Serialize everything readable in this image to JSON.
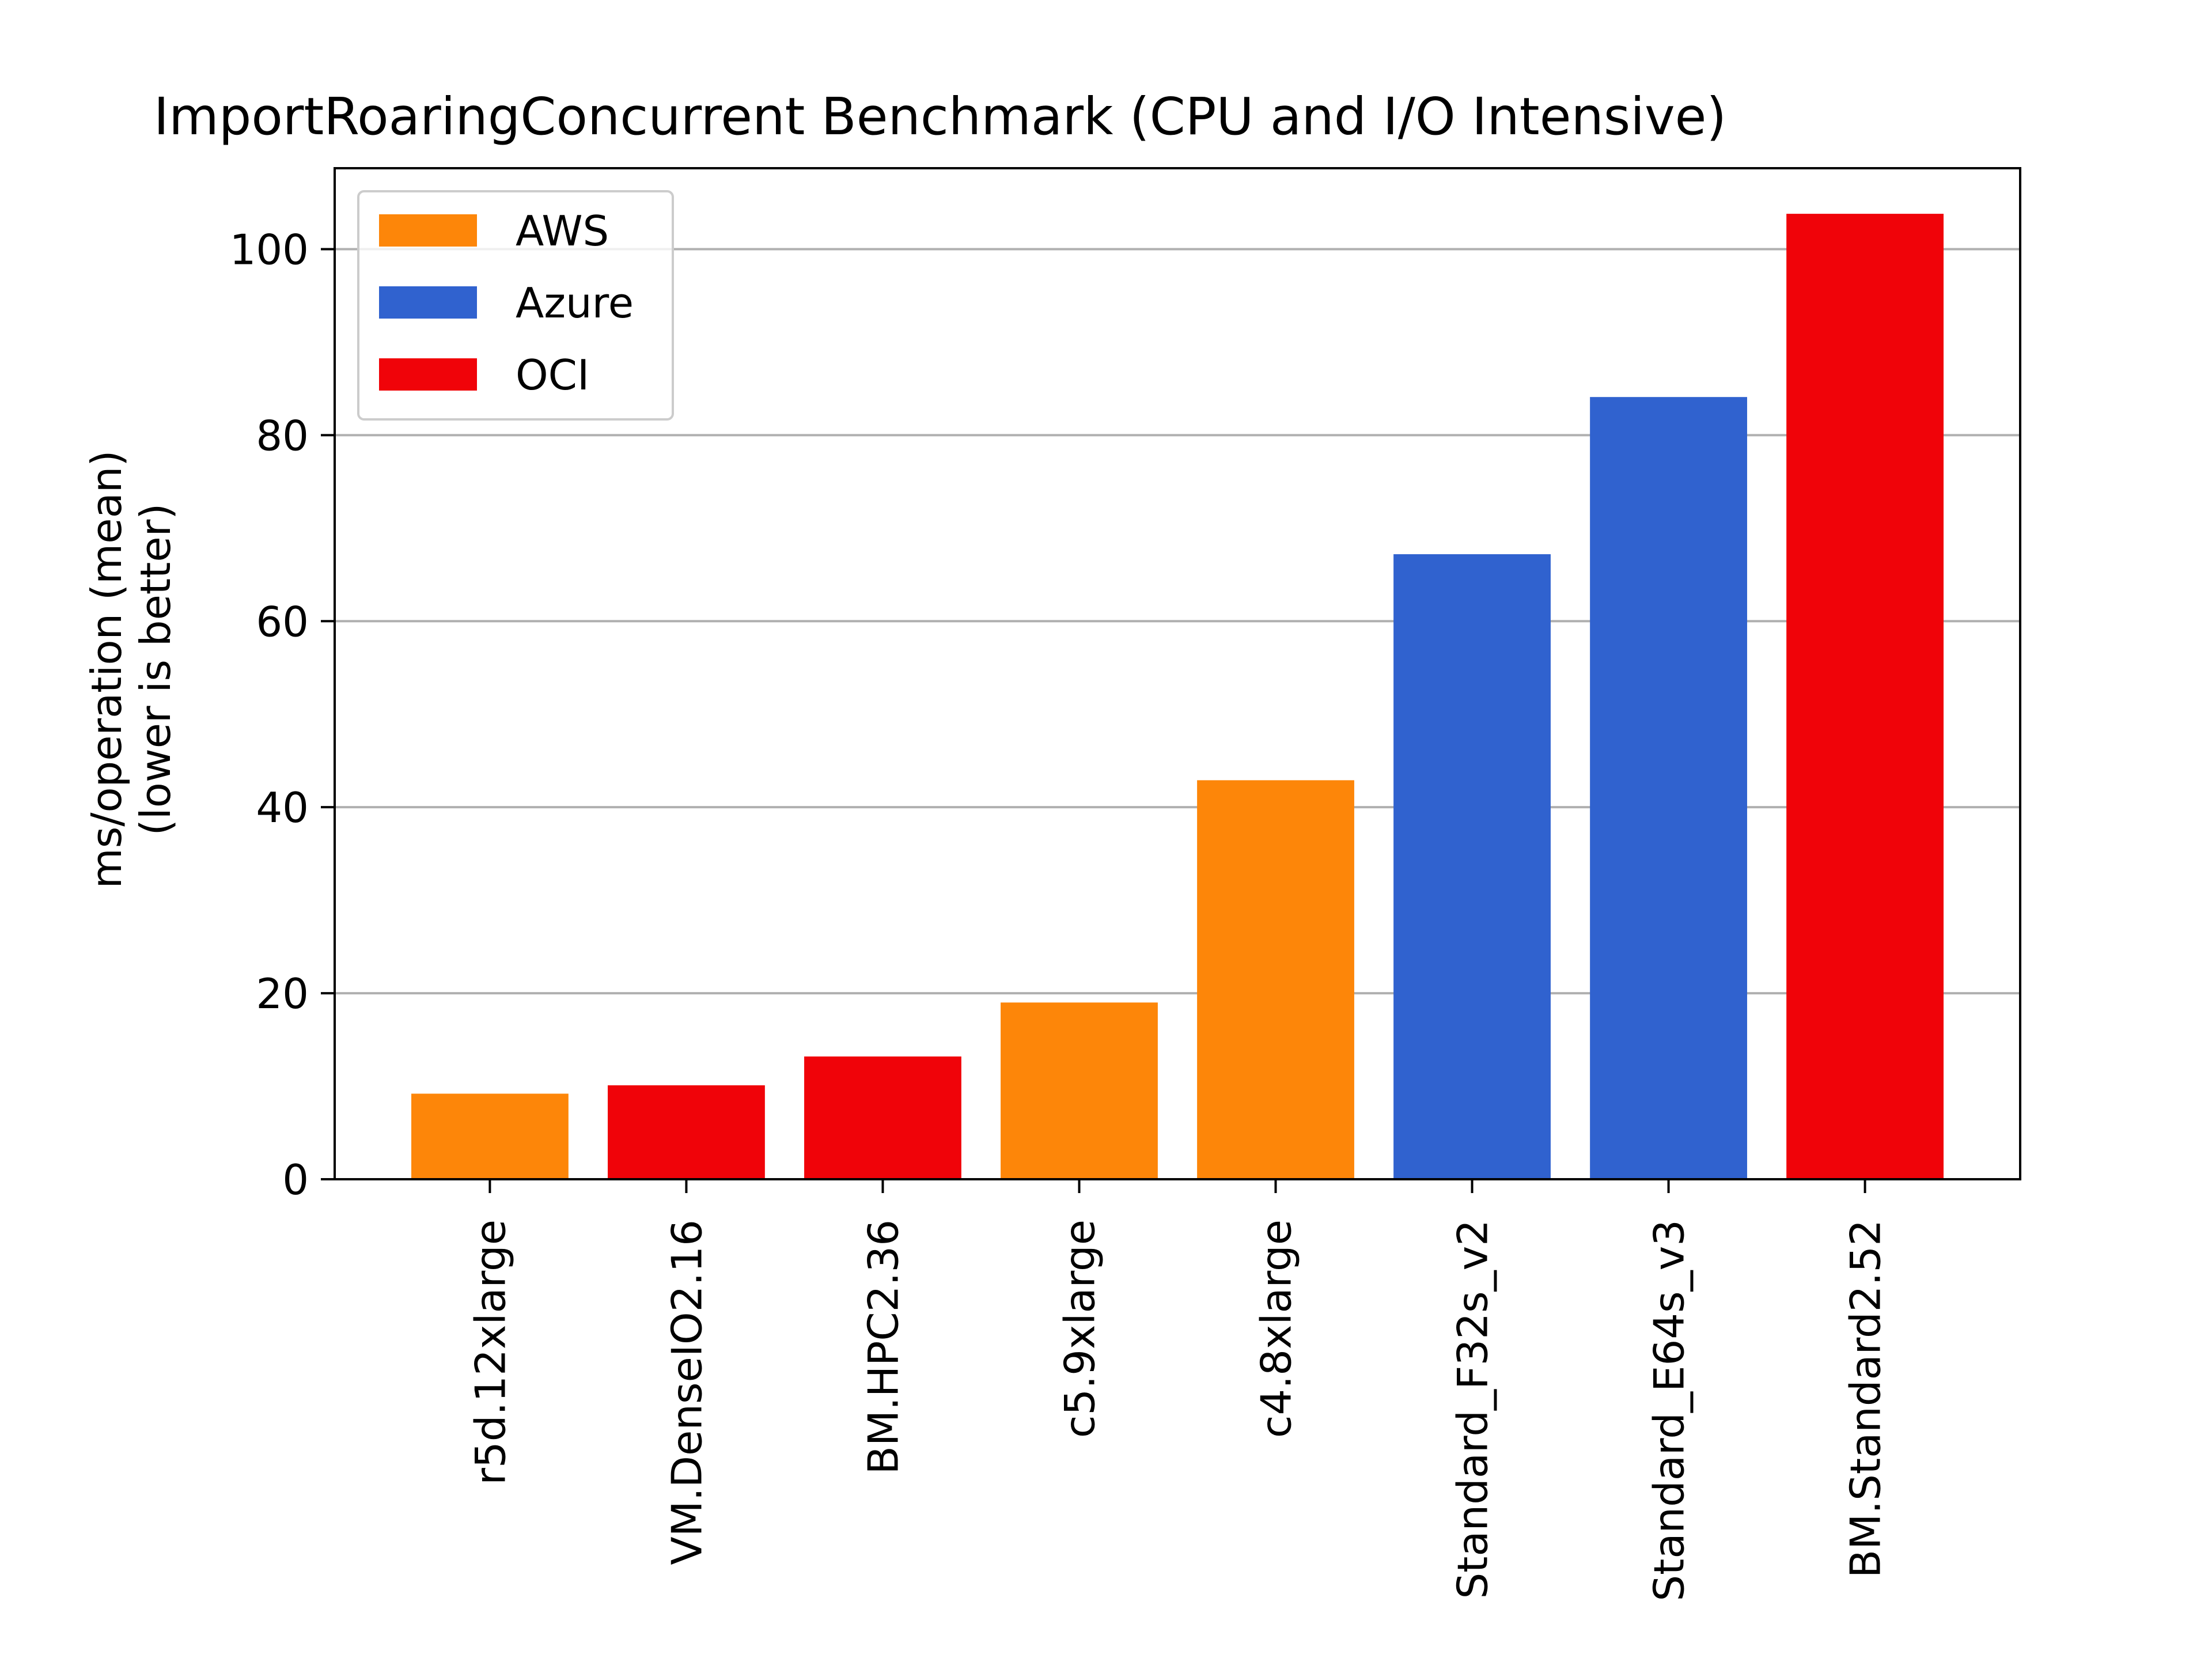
{
  "chart_data": {
    "type": "bar",
    "title": "ImportRoaringConcurrent Benchmark (CPU and I/O Intensive)",
    "xlabel": "",
    "ylabel_lines": [
      "ms/operation (mean)",
      "(lower is better)"
    ],
    "ylim": [
      0,
      108.7
    ],
    "yticks": [
      0,
      20,
      40,
      60,
      80,
      100
    ],
    "ytick_labels": [
      "0",
      "20",
      "40",
      "60",
      "80",
      "100"
    ],
    "grid": "y-major",
    "legend_position": "top-left",
    "categories": [
      "r5d.12xlarge",
      "VM.DenseIO2.16",
      "BM.HPC2.36",
      "c5.9xlarge",
      "c4.8xlarge",
      "Standard_F32s_v2",
      "Standard_E64s_v3",
      "BM.Standard2.52"
    ],
    "values": [
      9.2,
      10.1,
      13.2,
      19.0,
      42.9,
      67.2,
      84.1,
      103.8
    ],
    "providers": [
      "AWS",
      "OCI",
      "OCI",
      "AWS",
      "AWS",
      "Azure",
      "Azure",
      "OCI"
    ],
    "series": [
      {
        "name": "AWS",
        "color": "#fd8609"
      },
      {
        "name": "Azure",
        "color": "#3062cf"
      },
      {
        "name": "OCI",
        "color": "#f00309"
      }
    ],
    "grid_color": "#b0b0b0"
  }
}
